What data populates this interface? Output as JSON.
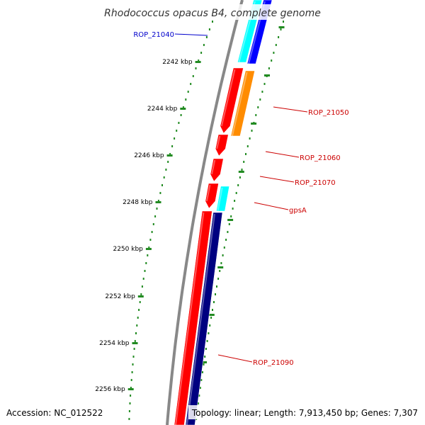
{
  "title": "Rhodococcus opacus B4, complete genome",
  "colors": {
    "minor_tick": "#228B22",
    "major_tick": "#228B22",
    "backbone": "#888888",
    "red": "#ff0000",
    "orange": "#ff8c00",
    "cyan": "#00ffff",
    "blue": "#0000ff",
    "navy": "#000080",
    "label_red": "#cc0000",
    "label_blue": "#0000cc"
  },
  "scale_labels": [
    "2242 kbp",
    "2244 kbp",
    "2246 kbp",
    "2248 kbp",
    "2250 kbp",
    "2252 kbp",
    "2254 kbp",
    "2256 kbp"
  ],
  "genes": [
    {
      "label": "ROP_21040",
      "color": "cyan",
      "label_color": "label_blue"
    },
    {
      "label": "",
      "color": "blue",
      "label_color": "label_blue"
    },
    {
      "label": "ROP_21050",
      "color": "red",
      "label_color": "label_red"
    },
    {
      "label": "",
      "color": "orange",
      "label_color": "label_red"
    },
    {
      "label": "ROP_21060",
      "color": "red",
      "label_color": "label_red"
    },
    {
      "label": "ROP_21070",
      "color": "red",
      "label_color": "label_red"
    },
    {
      "label": "",
      "color": "red",
      "label_color": "label_red"
    },
    {
      "label": "gpsA",
      "color": "cyan",
      "label_color": "label_red"
    },
    {
      "label": "ROP_21090",
      "color": "red",
      "label_color": "label_red"
    },
    {
      "label": "",
      "color": "navy",
      "label_color": "label_red"
    }
  ],
  "footer": {
    "accession": "Accession: NC_012522",
    "summary": "Topology: linear; Length: 7,913,450 bp; Genes: 7,307"
  }
}
